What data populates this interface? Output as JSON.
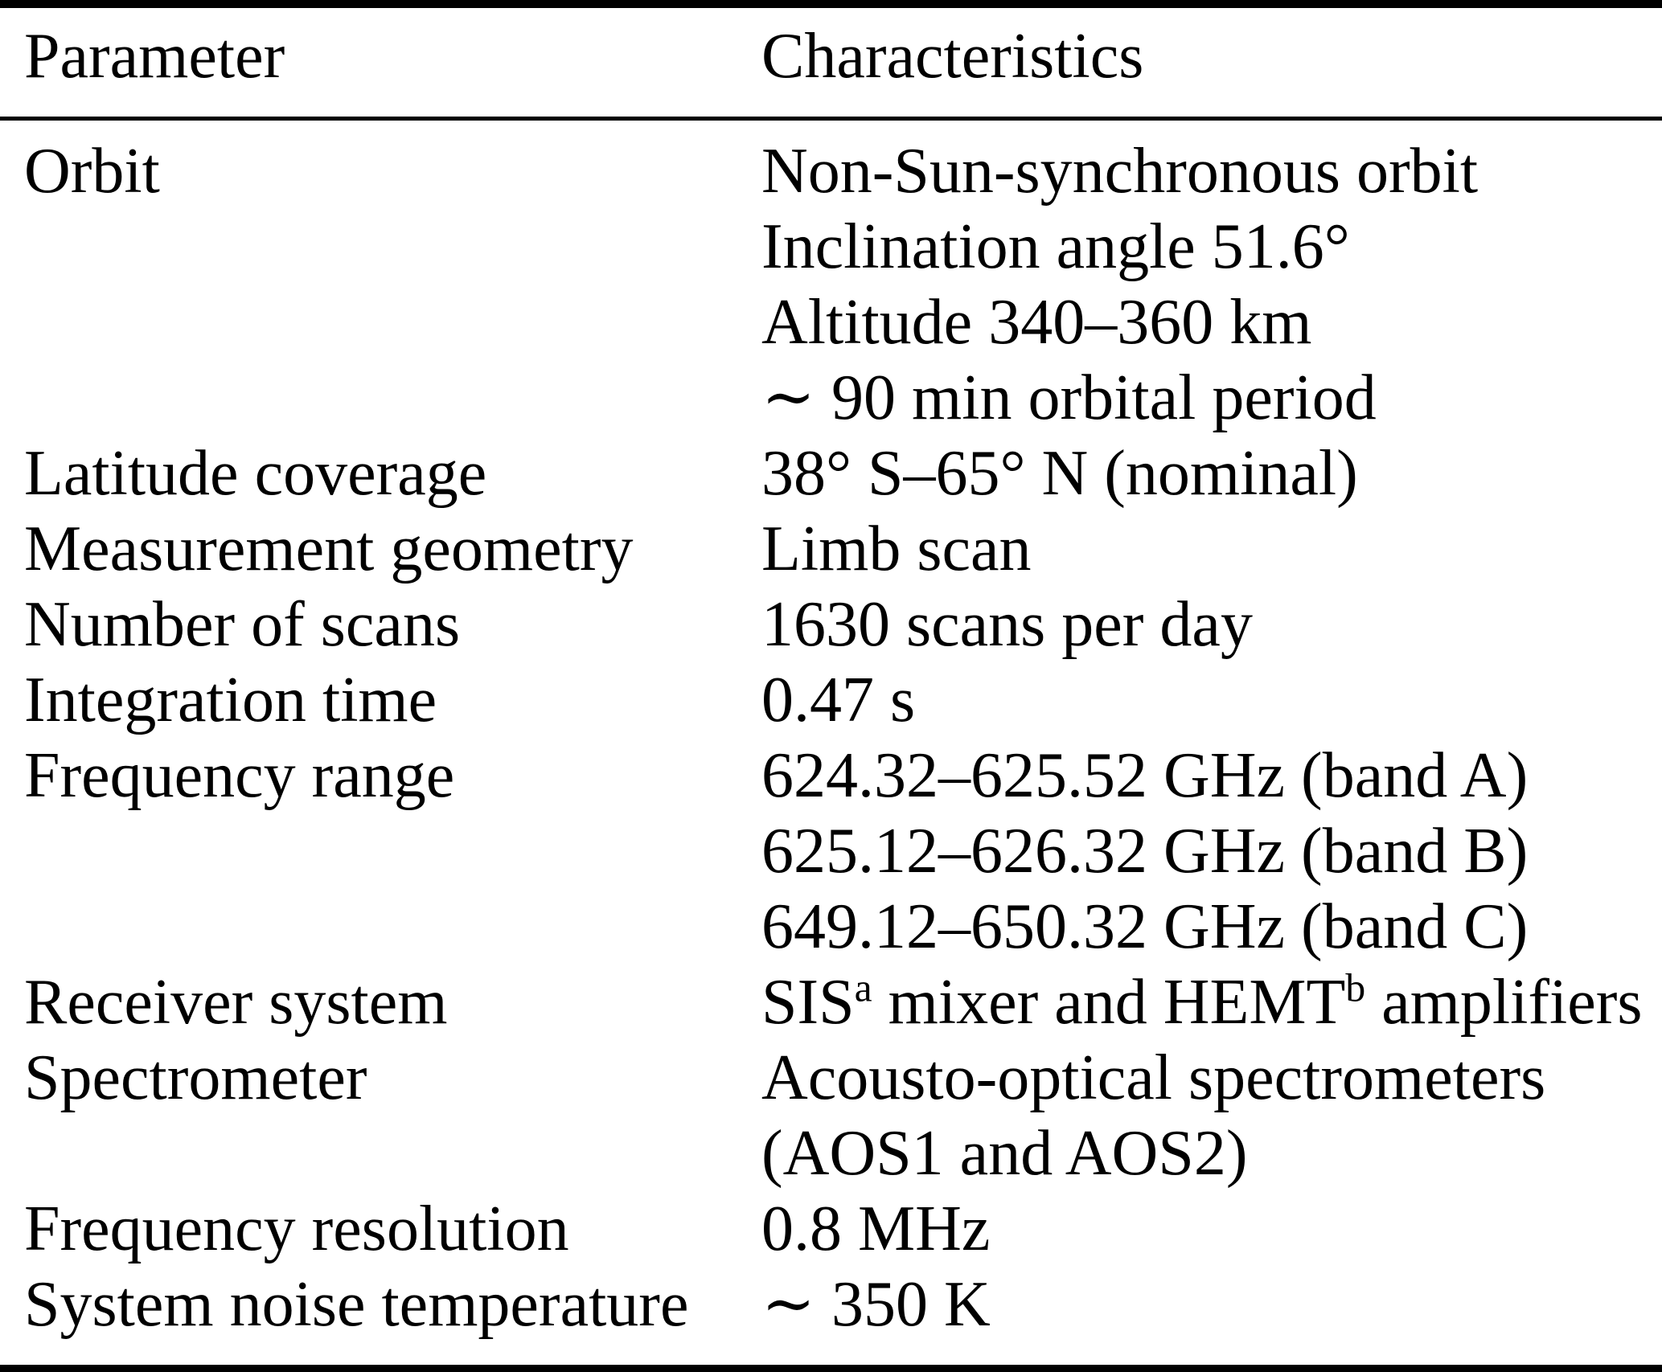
{
  "page": {
    "background_color": "#ffffff",
    "text_color": "#000000"
  },
  "table": {
    "columns": [
      "Parameter",
      "Characteristics"
    ],
    "rows": [
      {
        "parameter": "Orbit",
        "characteristics": [
          [
            "Non-Sun-synchronous orbit"
          ],
          [
            "Inclination angle 51.6°"
          ],
          [
            "Altitude 340–360 km"
          ],
          [
            "∼ 90 min orbital period"
          ]
        ]
      },
      {
        "parameter": "Latitude coverage",
        "characteristics": [
          [
            "38° S–65° N (nominal)"
          ]
        ]
      },
      {
        "parameter": "Measurement geometry",
        "characteristics": [
          [
            "Limb scan"
          ]
        ]
      },
      {
        "parameter": "Number of scans",
        "characteristics": [
          [
            "1630 scans per day"
          ]
        ]
      },
      {
        "parameter": "Integration time",
        "characteristics": [
          [
            "0.47 s"
          ]
        ]
      },
      {
        "parameter": "Frequency range",
        "characteristics": [
          [
            "624.32–625.52 GHz (band A)"
          ],
          [
            "625.12–626.32 GHz (band B)"
          ],
          [
            "649.12–650.32 GHz (band C)"
          ]
        ]
      },
      {
        "parameter": "Receiver system",
        "characteristics": [
          [
            "SIS",
            {
              "sup": "a"
            },
            " mixer and HEMT",
            {
              "sup": "b"
            },
            " amplifiers"
          ]
        ]
      },
      {
        "parameter": "Spectrometer",
        "characteristics": [
          [
            "Acousto-optical spectrometers"
          ],
          [
            "(AOS1 and AOS2)"
          ]
        ]
      },
      {
        "parameter": "Frequency resolution",
        "characteristics": [
          [
            "0.8 MHz"
          ]
        ]
      },
      {
        "parameter": "System noise temperature",
        "characteristics": [
          [
            "∼ 350 K"
          ]
        ]
      }
    ]
  }
}
